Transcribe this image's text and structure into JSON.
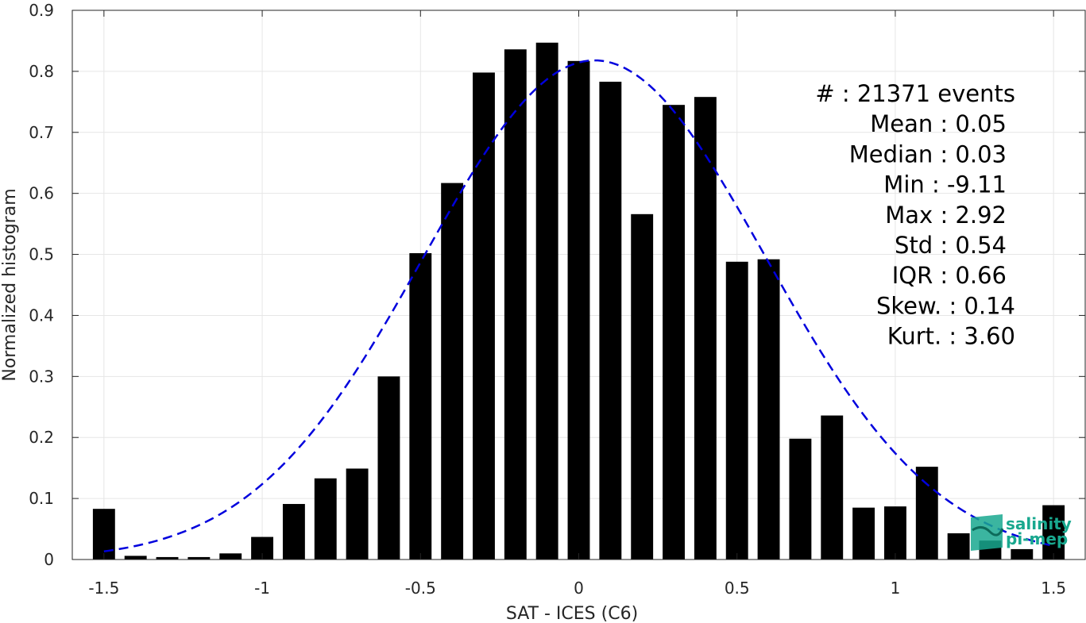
{
  "chart_data": {
    "type": "bar",
    "xlabel": "SAT - ICES (C6)",
    "ylabel": "Normalized histogram",
    "xlim": [
      -1.6,
      1.6
    ],
    "ylim": [
      0,
      0.9
    ],
    "xticks": [
      -1.5,
      -1,
      -0.5,
      0,
      0.5,
      1,
      1.5
    ],
    "xtick_labels": [
      "-1.5",
      "-1",
      "-0.5",
      "0",
      "0.5",
      "1",
      "1.5"
    ],
    "yticks": [
      0,
      0.1,
      0.2,
      0.3,
      0.4,
      0.5,
      0.6,
      0.7,
      0.8,
      0.9
    ],
    "ytick_labels": [
      "0",
      "0.1",
      "0.2",
      "0.3",
      "0.4",
      "0.5",
      "0.6",
      "0.7",
      "0.8",
      "0.9"
    ],
    "grid": true,
    "bar_width": 0.07,
    "bars": {
      "x": [
        -1.5,
        -1.4,
        -1.3,
        -1.2,
        -1.1,
        -1.0,
        -0.9,
        -0.8,
        -0.7,
        -0.6,
        -0.5,
        -0.4,
        -0.3,
        -0.2,
        -0.1,
        0.0,
        0.1,
        0.2,
        0.3,
        0.4,
        0.5,
        0.6,
        0.7,
        0.8,
        0.9,
        1.0,
        1.1,
        1.2,
        1.3,
        1.4,
        1.5
      ],
      "values": [
        0.083,
        0.006,
        0.004,
        0.004,
        0.01,
        0.037,
        0.091,
        0.133,
        0.149,
        0.3,
        0.502,
        0.617,
        0.798,
        0.836,
        0.847,
        0.817,
        0.783,
        0.566,
        0.745,
        0.758,
        0.488,
        0.492,
        0.198,
        0.236,
        0.085,
        0.087,
        0.152,
        0.043,
        0.031,
        0.017,
        0.089
      ],
      "color": "#000000"
    },
    "fit_curve": {
      "style": "dashed",
      "color": "#0000dd",
      "mean": 0.05,
      "std": 0.54,
      "peak": 0.818,
      "x_range": [
        -1.5,
        1.5
      ]
    },
    "stats": [
      {
        "label": "#  : ",
        "value": "21371 events",
        "align": "far"
      },
      {
        "label": "Mean : ",
        "value": "0.05",
        "align": "near"
      },
      {
        "label": "Median : ",
        "value": "0.03",
        "align": "near"
      },
      {
        "label": "Min : ",
        "value": "-9.11",
        "align": "near"
      },
      {
        "label": "Max : ",
        "value": "2.92",
        "align": "near"
      },
      {
        "label": "Std : ",
        "value": "0.54",
        "align": "near"
      },
      {
        "label": "IQR : ",
        "value": "0.66",
        "align": "near"
      },
      {
        "label": "Skew. : ",
        "value": "0.14",
        "align": "far"
      },
      {
        "label": "Kurt. : ",
        "value": "3.60",
        "align": "far"
      }
    ]
  },
  "logo": {
    "line1": "salinity",
    "line2": "pi-mep",
    "color": "#19a88f"
  }
}
